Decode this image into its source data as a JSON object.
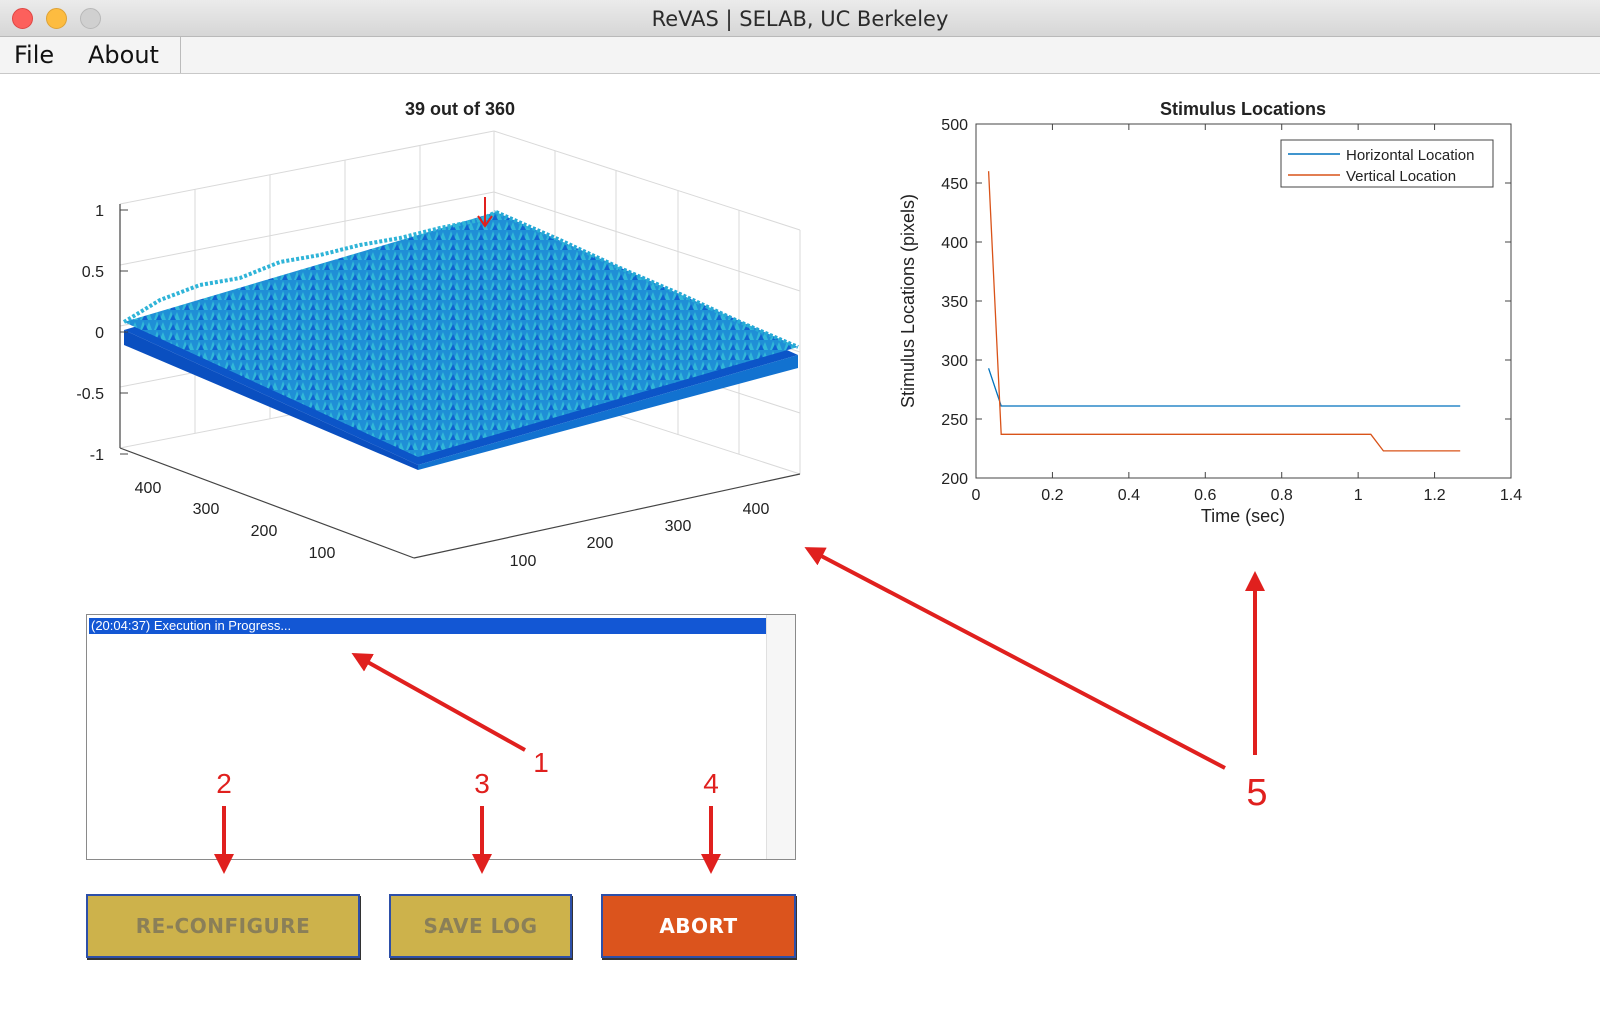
{
  "window": {
    "title": "ReVAS | SELAB, UC Berkeley"
  },
  "menu": {
    "items": [
      {
        "label": "File"
      },
      {
        "label": "About"
      }
    ]
  },
  "surface_plot": {
    "title": "39 out of 360",
    "z_ticks": [
      "1",
      "0.5",
      "0",
      "-0.5",
      "-1"
    ],
    "left_axis_ticks": [
      "400",
      "300",
      "200",
      "100"
    ],
    "right_axis_ticks": [
      "100",
      "200",
      "300",
      "400"
    ],
    "colors": {
      "surface_light": "#2aa6d6",
      "surface_dark": "#0c55c8",
      "marker": "#e0201e"
    }
  },
  "chart_data": {
    "type": "line",
    "title": "Stimulus Locations",
    "xlabel": "Time (sec)",
    "ylabel": "Stimulus Locations (pixels)",
    "xlim": [
      0,
      1.4
    ],
    "ylim": [
      200,
      500
    ],
    "x_ticks": [
      0,
      0.2,
      0.4,
      0.6,
      0.8,
      1,
      1.2,
      1.4
    ],
    "y_ticks": [
      200,
      250,
      300,
      350,
      400,
      450,
      500
    ],
    "grid": false,
    "legend_position": "top-right",
    "series": [
      {
        "name": "Horizontal Location",
        "color": "#0072bd",
        "points": [
          [
            0.033,
            293
          ],
          [
            0.066,
            261
          ],
          [
            1.267,
            261
          ]
        ]
      },
      {
        "name": "Vertical Location",
        "color": "#d95319",
        "points": [
          [
            0.033,
            460
          ],
          [
            0.066,
            237
          ],
          [
            1.033,
            237
          ],
          [
            1.066,
            223
          ],
          [
            1.267,
            223
          ]
        ]
      }
    ]
  },
  "log": {
    "entries": [
      "(20:04:37) Execution in Progress..."
    ]
  },
  "buttons": {
    "reconfigure": "RE-CONFIGURE",
    "save_log": "SAVE LOG",
    "abort": "ABORT"
  },
  "annotations": {
    "labels": [
      "1",
      "2",
      "3",
      "4",
      "5"
    ],
    "color": "#e0201e"
  }
}
